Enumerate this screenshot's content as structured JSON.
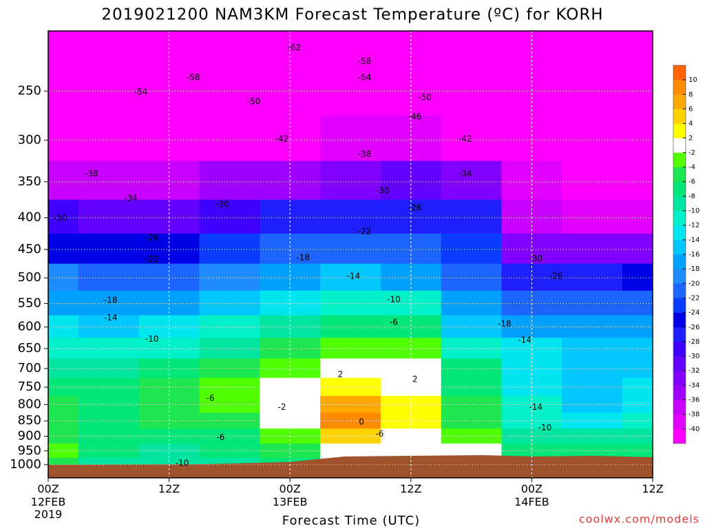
{
  "chart_data": {
    "type": "contour",
    "title": "2019021200 NAM3KM Forecast Temperature (ºC) for KORH",
    "xlabel": "Forecast Time (UTC)",
    "footer": "coolwx.com/models",
    "xlim": [
      0,
      60
    ],
    "ylim": [
      1050,
      200
    ],
    "ylog": true,
    "grid": true,
    "xticks": [
      {
        "value": 0,
        "label": "00Z"
      },
      {
        "value": 12,
        "label": "12Z"
      },
      {
        "value": 24,
        "label": "00Z"
      },
      {
        "value": 36,
        "label": "12Z"
      },
      {
        "value": 48,
        "label": "00Z"
      },
      {
        "value": 60,
        "label": "12Z"
      }
    ],
    "xdates": [
      {
        "value": 0,
        "label": "12FEB"
      },
      {
        "value": 24,
        "label": "13FEB"
      },
      {
        "value": 48,
        "label": "14FEB"
      }
    ],
    "xyear": {
      "value": 0,
      "label": "2019"
    },
    "yticks": [
      250,
      300,
      350,
      400,
      450,
      500,
      550,
      600,
      650,
      700,
      750,
      800,
      850,
      900,
      950,
      1000
    ],
    "levels": [
      -40,
      -38,
      -36,
      -34,
      -32,
      -30,
      -28,
      -26,
      -24,
      -22,
      -20,
      -18,
      -16,
      -14,
      -12,
      -10,
      -8,
      -6,
      -4,
      -2,
      2,
      4,
      6,
      8,
      10
    ],
    "colors": [
      "#ff00ff",
      "#e100ff",
      "#c800ff",
      "#a000ff",
      "#8200ff",
      "#6400ff",
      "#4000ff",
      "#2020ff",
      "#0000e6",
      "#0a3cff",
      "#1e64ff",
      "#1e8cff",
      "#00a0ff",
      "#00c8ff",
      "#00e6f0",
      "#00f0c8",
      "#00e6a0",
      "#00e678",
      "#1ee650",
      "#50ff00",
      "#ffffff",
      "#ffff00",
      "#ffd200",
      "#ffaa00",
      "#ff8c00",
      "#ff6400"
    ],
    "x": [
      0,
      6,
      12,
      18,
      24,
      30,
      36,
      42,
      48,
      54,
      60
    ],
    "y": [
      200,
      250,
      300,
      350,
      400,
      450,
      500,
      550,
      600,
      650,
      700,
      750,
      800,
      850,
      900,
      950,
      1000
    ],
    "z": [
      [
        -60,
        -61,
        -62,
        -62,
        -63,
        -62,
        -61,
        -59,
        -58,
        -57,
        -56
      ],
      [
        -53,
        -54,
        -54,
        -52,
        -52,
        -51,
        -50,
        -50,
        -50,
        -50,
        -50
      ],
      [
        -44,
        -45,
        -45,
        -43,
        -42,
        -40,
        -40,
        -42,
        -44,
        -44,
        -45
      ],
      [
        -38,
        -38,
        -37,
        -36,
        -35,
        -33,
        -32,
        -34,
        -39,
        -41,
        -42
      ],
      [
        -30,
        -32,
        -31,
        -30,
        -28,
        -27,
        -27,
        -27,
        -38,
        -39,
        -39
      ],
      [
        -25,
        -26,
        -26,
        -24,
        -21,
        -22,
        -22,
        -24,
        -34,
        -34,
        -33
      ],
      [
        -20,
        -22,
        -21,
        -19,
        -17,
        -16,
        -17,
        -21,
        -28,
        -27,
        -26
      ],
      [
        -17,
        -18,
        -17,
        -15,
        -14,
        -12,
        -12,
        -18,
        -22,
        -21,
        -21
      ],
      [
        -14,
        -15,
        -14,
        -12,
        -10,
        -8,
        -7,
        -16,
        -17,
        -18,
        -18
      ],
      [
        -11,
        -12,
        -11,
        -9,
        -6,
        -4,
        -3,
        -12,
        -14,
        -16,
        -16
      ],
      [
        -9,
        -10,
        -8,
        -6,
        -3,
        -1,
        -1,
        -8,
        -13,
        -15,
        -15
      ],
      [
        -7,
        -8,
        -6,
        -4,
        -1,
        3,
        1,
        -7,
        -13,
        -16,
        -14
      ],
      [
        -6,
        -7,
        -5,
        -3,
        1,
        6,
        2,
        -6,
        -12,
        -16,
        -13
      ],
      [
        -5,
        -7,
        -5,
        -5,
        -2,
        9,
        3,
        -5,
        -11,
        -13,
        -12
      ],
      [
        -5,
        -7,
        -7,
        -7,
        -4,
        4,
        1,
        -4,
        -9,
        -10,
        -10
      ],
      [
        -4,
        -8,
        -9,
        -8,
        -6,
        -1,
        0,
        -2,
        -7,
        -8,
        -8
      ],
      [
        -6,
        -9,
        -10,
        -9,
        -7,
        -2,
        0,
        0,
        -5,
        -6,
        -6
      ]
    ],
    "contour_labels": [
      {
        "value": -62,
        "x": 24.4,
        "y": 213
      },
      {
        "value": -58,
        "x": 31.4,
        "y": 224
      },
      {
        "value": -58,
        "x": 14.4,
        "y": 238
      },
      {
        "value": -54,
        "x": 31.4,
        "y": 238
      },
      {
        "value": -54,
        "x": 9.2,
        "y": 251
      },
      {
        "value": -50,
        "x": 20.4,
        "y": 260
      },
      {
        "value": -50,
        "x": 37.4,
        "y": 256
      },
      {
        "value": -46,
        "x": 36.4,
        "y": 275
      },
      {
        "value": -42,
        "x": 23.2,
        "y": 299
      },
      {
        "value": -42,
        "x": 41.4,
        "y": 299
      },
      {
        "value": -38,
        "x": 31.4,
        "y": 316
      },
      {
        "value": -38,
        "x": 4.3,
        "y": 340
      },
      {
        "value": -34,
        "x": 41.4,
        "y": 340
      },
      {
        "value": -34,
        "x": 8.2,
        "y": 372
      },
      {
        "value": -30,
        "x": 33.2,
        "y": 362
      },
      {
        "value": -30,
        "x": 17.3,
        "y": 381
      },
      {
        "value": -30,
        "x": 1.2,
        "y": 401
      },
      {
        "value": -26,
        "x": 36.4,
        "y": 386
      },
      {
        "value": -26,
        "x": 10.3,
        "y": 431
      },
      {
        "value": -22,
        "x": 31.4,
        "y": 421
      },
      {
        "value": -22,
        "x": 10.3,
        "y": 467
      },
      {
        "value": -18,
        "x": 25.3,
        "y": 464
      },
      {
        "value": -14,
        "x": 30.3,
        "y": 497
      },
      {
        "value": -18,
        "x": 6.2,
        "y": 544
      },
      {
        "value": -10,
        "x": 34.3,
        "y": 542
      },
      {
        "value": -14,
        "x": 6.2,
        "y": 580
      },
      {
        "value": -6,
        "x": 34.3,
        "y": 590
      },
      {
        "value": -10,
        "x": 10.3,
        "y": 628
      },
      {
        "value": -30,
        "x": 48.4,
        "y": 466
      },
      {
        "value": -26,
        "x": 50.4,
        "y": 497
      },
      {
        "value": -18,
        "x": 45.3,
        "y": 594
      },
      {
        "value": -14,
        "x": 47.3,
        "y": 630
      },
      {
        "value": -14,
        "x": 48.4,
        "y": 808
      },
      {
        "value": -10,
        "x": 49.3,
        "y": 873
      },
      {
        "value": 2,
        "x": 29,
        "y": 716
      },
      {
        "value": 2,
        "x": 36.4,
        "y": 729
      },
      {
        "value": -6,
        "x": 16.1,
        "y": 782
      },
      {
        "value": -2,
        "x": 23.2,
        "y": 808
      },
      {
        "value": 0,
        "x": 31.1,
        "y": 854
      },
      {
        "value": -6,
        "x": 32.9,
        "y": 893
      },
      {
        "value": -6,
        "x": 17.1,
        "y": 904
      },
      {
        "value": -10,
        "x": 13.3,
        "y": 995
      }
    ]
  }
}
